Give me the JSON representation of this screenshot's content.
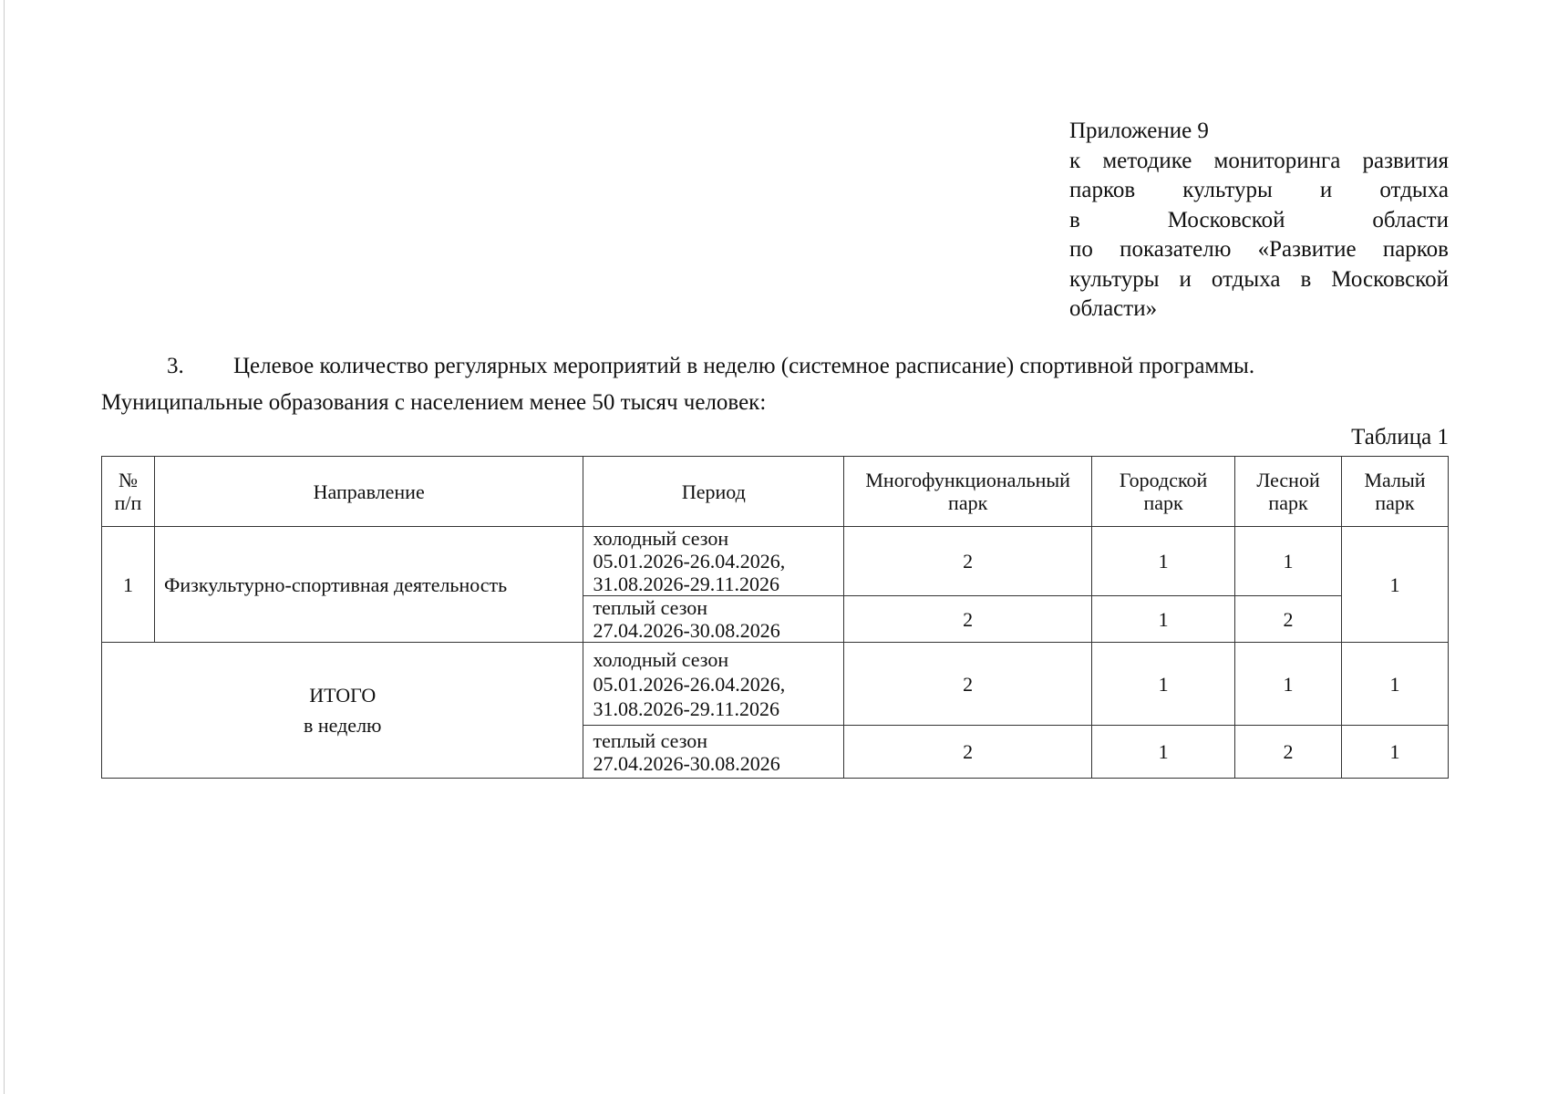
{
  "appendix": {
    "lines": [
      "Приложение 9",
      "к методике мониторинга развития",
      "парков культуры и отдыха",
      "в Московской области",
      "по показателю «Развитие парков",
      "культуры и отдыха в Московской",
      "области»"
    ]
  },
  "section": {
    "number": "3.",
    "text": "Целевое количество регулярных мероприятий в неделю (системное расписание) спортивной программы.",
    "subtext": "Муниципальные образования с населением менее 50 тысяч человек:"
  },
  "table": {
    "caption": "Таблица 1",
    "headers": [
      "№ п/п",
      "Направление",
      "Период",
      "Многофункциональный парк",
      "Городской парк",
      "Лесной парк",
      "Малый парк"
    ],
    "row1": {
      "num": "1",
      "direction": "Физкультурно-спортивная деятельность",
      "cold": {
        "period_title": "холодный сезон",
        "period_dates1": "05.01.2026-26.04.2026,",
        "period_dates2": "31.08.2026-29.11.2026",
        "multi": "2",
        "city": "1",
        "forest": "1"
      },
      "warm": {
        "period_title": "теплый сезон",
        "period_dates1": "27.04.2026-30.08.2026",
        "multi": "2",
        "city": "1",
        "forest": "2"
      },
      "small": "1"
    },
    "total": {
      "label": "ИТОГО",
      "sublabel": "в неделю",
      "cold": {
        "period_title": "холодный сезон",
        "period_dates1": "05.01.2026-26.04.2026,",
        "period_dates2": "31.08.2026-29.11.2026",
        "multi": "2",
        "city": "1",
        "forest": "1",
        "small": "1"
      },
      "warm": {
        "period_title": "теплый сезон",
        "period_dates1": "27.04.2026-30.08.2026",
        "multi": "2",
        "city": "1",
        "forest": "2",
        "small": "1"
      }
    }
  }
}
